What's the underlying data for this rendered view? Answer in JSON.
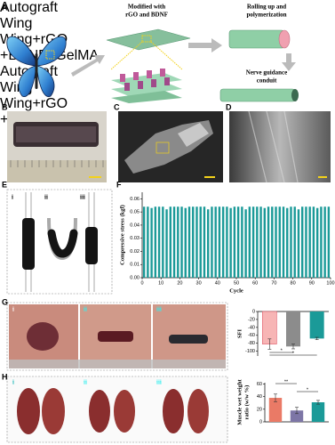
{
  "panels": [
    "A",
    "B",
    "C",
    "D",
    "E",
    "F",
    "G",
    "H"
  ],
  "schematic": {
    "modify": [
      "Modified with",
      "rGO and BDNF"
    ],
    "roll": [
      "Rolling up and",
      "polymerization"
    ],
    "conduit": [
      "Nerve guidance",
      "conduit"
    ]
  },
  "photo_labels": {
    "E": [
      "i",
      "ii",
      "iii"
    ],
    "G": [
      "i",
      "ii",
      "iii"
    ],
    "H": [
      "i",
      "ii",
      "iii"
    ]
  },
  "chart_data": [
    {
      "type": "bar",
      "xlabel": "Cycle",
      "ylabel": "Compressive stress (kgf)",
      "color": "#1b9a98",
      "x": [
        1,
        3,
        5,
        7,
        9,
        11,
        13,
        15,
        17,
        19,
        21,
        23,
        25,
        27,
        29,
        31,
        33,
        35,
        37,
        39,
        41,
        43,
        45,
        47,
        49,
        51,
        53,
        55,
        57,
        59,
        61,
        63,
        65,
        67,
        69,
        71,
        73,
        75,
        77,
        79,
        81,
        83,
        85,
        87,
        89,
        91,
        93,
        95,
        97,
        99
      ],
      "values": [
        0.054,
        0.054,
        0.053,
        0.054,
        0.054,
        0.054,
        0.052,
        0.054,
        0.054,
        0.054,
        0.054,
        0.053,
        0.054,
        0.054,
        0.054,
        0.054,
        0.054,
        0.052,
        0.054,
        0.054,
        0.054,
        0.054,
        0.054,
        0.053,
        0.054,
        0.054,
        0.054,
        0.052,
        0.054,
        0.054,
        0.054,
        0.054,
        0.053,
        0.054,
        0.054,
        0.054,
        0.054,
        0.054,
        0.053,
        0.054,
        0.054,
        0.052,
        0.054,
        0.054,
        0.054,
        0.054,
        0.053,
        0.054,
        0.054,
        0.054
      ],
      "xlim": [
        0,
        100
      ],
      "xticks": [
        0,
        10,
        20,
        30,
        40,
        50,
        60,
        70,
        80,
        90,
        100
      ],
      "ylim": [
        0,
        0.065
      ],
      "yticks": [
        {
          "value": 0,
          "label": "0.00"
        },
        {
          "value": 0.01,
          "label": "0.01"
        },
        {
          "value": 0.02,
          "label": "0.02"
        },
        {
          "value": 0.03,
          "label": "0.03"
        },
        {
          "value": 0.04,
          "label": "0.04"
        },
        {
          "value": 0.05,
          "label": "0.05"
        },
        {
          "value": 0.06,
          "label": "0.06"
        }
      ]
    },
    {
      "type": "bar",
      "ylabel": "SFI",
      "categories": [
        "Autograft",
        "Wing",
        "Wing+rGO +BDNF+GelMA"
      ],
      "values": [
        -82,
        -88,
        -68
      ],
      "errors": [
        13,
        6,
        3
      ],
      "colors": [
        "#f7b5b5",
        "#8c8c8c",
        "#1b9a98"
      ],
      "ylim": [
        -112,
        0
      ],
      "yticks": [
        0,
        -20,
        -40,
        -60,
        -80,
        -100
      ],
      "annotations": [
        "*",
        "*"
      ]
    },
    {
      "type": "bar",
      "ylabel": [
        "Muscle wet weight",
        "ratio (w/w %)"
      ],
      "categories": [
        "Autograft",
        "Wing",
        "Wing+rGO +BDNF+GelMA"
      ],
      "values": [
        38,
        18,
        31
      ],
      "errors": [
        6,
        5,
        3
      ],
      "colors": [
        "#ea7a66",
        "#7d76a6",
        "#1b9a98"
      ],
      "ylim": [
        0,
        62
      ],
      "yticks": [
        0,
        20,
        40,
        60
      ],
      "annotations": [
        "**",
        "*"
      ]
    }
  ]
}
